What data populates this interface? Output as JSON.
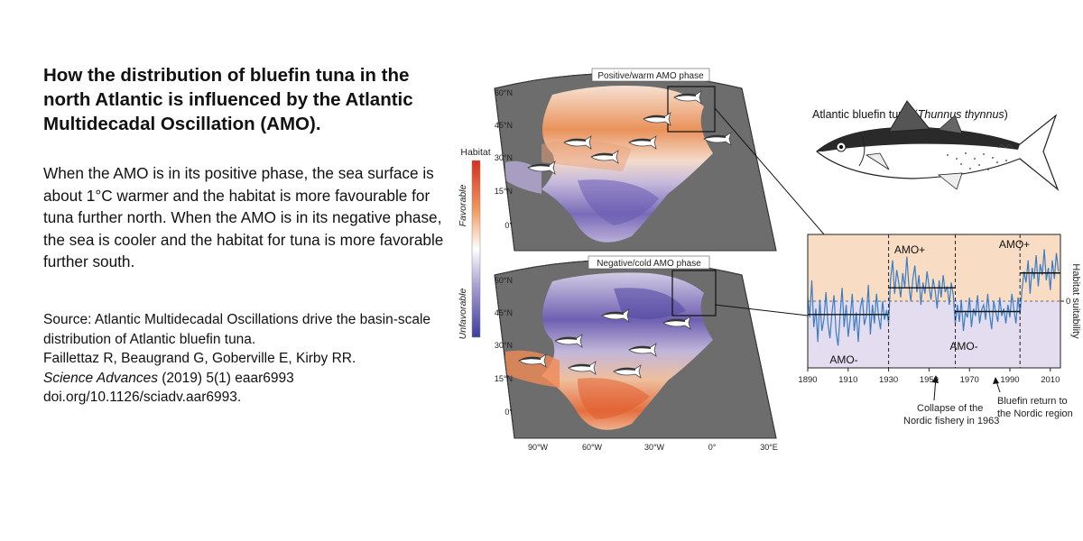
{
  "text": {
    "title": "How the distribution of bluefin tuna in the north Atlantic is influenced by the Atlantic Multidecadal Oscillation (AMO).",
    "body": "When the AMO is in its positive phase, the sea surface is about 1°C warmer and the habitat is more favourable for tuna further north. When the AMO is in its negative phase, the sea is cooler and the habitat for tuna is more favorable further south.",
    "source_line1": "Source: Atlantic Multidecadal Oscillations drive the basin-scale distribution of Atlantic bluefin tuna.",
    "source_line2": "Faillettaz R, Beaugrand G, Goberville E, Kirby RR.",
    "source_journal": "Science Advances",
    "source_ref": " (2019) 5(1) eaar6993",
    "source_doi": "doi.org/10.1126/sciadv.aar6993."
  },
  "maps": {
    "positive_label": "Positive/warm AMO phase",
    "negative_label": "Negative/cold AMO phase",
    "lat_labels": [
      "60°N",
      "45°N",
      "30°N",
      "15°N",
      "0°"
    ],
    "lon_labels": [
      "90°W",
      "60°W",
      "30°W",
      "0°",
      "30°E"
    ]
  },
  "legend": {
    "title": "Habitat",
    "favorable": "Favorable",
    "unfavorable": "Unfavorable",
    "colors": {
      "favorable": "#d62f1f",
      "neutral": "#ffffff",
      "unfavorable": "#3b3d9e"
    }
  },
  "fish": {
    "caption_prefix": "Atlantic bluefin tuna (",
    "caption_species": "Thunnus thynnus",
    "caption_suffix": ")"
  },
  "chart_data": {
    "type": "line",
    "ylabel": "Habitat suitability",
    "x_ticks": [
      "1890",
      "1910",
      "1930",
      "1950",
      "1970",
      "1990",
      "2010"
    ],
    "y_ticks": [
      "0"
    ],
    "xlim": [
      1890,
      2015
    ],
    "phase_boundaries": [
      1930,
      1963,
      1995
    ],
    "phases": [
      {
        "label": "AMO-",
        "start": 1890,
        "end": 1930,
        "sign": "negative"
      },
      {
        "label": "AMO+",
        "start": 1930,
        "end": 1963,
        "sign": "positive"
      },
      {
        "label": "AMO-",
        "start": 1963,
        "end": 1995,
        "sign": "negative"
      },
      {
        "label": "AMO+",
        "start": 1995,
        "end": 2015,
        "sign": "positive"
      }
    ],
    "phase_means": [
      {
        "start": 1890,
        "end": 1930,
        "value": -0.18
      },
      {
        "start": 1930,
        "end": 1963,
        "value": 0.18
      },
      {
        "start": 1963,
        "end": 1995,
        "value": -0.14
      },
      {
        "start": 1995,
        "end": 2015,
        "value": 0.38
      }
    ],
    "series": [
      {
        "x": [
          1890,
          1891,
          1892,
          1893,
          1894,
          1895,
          1896,
          1897,
          1898,
          1899,
          1900,
          1901,
          1902,
          1903,
          1904,
          1905,
          1906,
          1907,
          1908,
          1909,
          1910,
          1911,
          1912,
          1913,
          1914,
          1915,
          1916,
          1917,
          1918,
          1919,
          1920,
          1921,
          1922,
          1923,
          1924,
          1925,
          1926,
          1927,
          1928,
          1929,
          1930,
          1931,
          1932,
          1933,
          1934,
          1935,
          1936,
          1937,
          1938,
          1939,
          1940,
          1941,
          1942,
          1943,
          1944,
          1945,
          1946,
          1947,
          1948,
          1949,
          1950,
          1951,
          1952,
          1953,
          1954,
          1955,
          1956,
          1957,
          1958,
          1959,
          1960,
          1961,
          1962,
          1963,
          1964,
          1965,
          1966,
          1967,
          1968,
          1969,
          1970,
          1971,
          1972,
          1973,
          1974,
          1975,
          1976,
          1977,
          1978,
          1979,
          1980,
          1981,
          1982,
          1983,
          1984,
          1985,
          1986,
          1987,
          1988,
          1989,
          1990,
          1991,
          1992,
          1993,
          1994,
          1995,
          1996,
          1997,
          1998,
          1999,
          2000,
          2001,
          2002,
          2003,
          2004,
          2005,
          2006,
          2007,
          2008,
          2009,
          2010,
          2011,
          2012,
          2013,
          2014
        ],
        "values": [
          0.05,
          -0.22,
          0.28,
          -0.35,
          -0.1,
          -0.55,
          0.02,
          -0.4,
          -0.25,
          0.12,
          -0.3,
          -0.5,
          -0.15,
          0.08,
          -0.42,
          -0.6,
          -0.2,
          0.18,
          -0.35,
          -0.05,
          -0.48,
          -0.25,
          0.1,
          -0.4,
          -0.15,
          -0.55,
          -0.1,
          0.05,
          -0.32,
          -0.2,
          0.22,
          -0.45,
          -0.05,
          -0.3,
          0.1,
          -0.2,
          -0.38,
          0.0,
          -0.25,
          -0.12,
          -0.3,
          0.3,
          0.55,
          0.1,
          0.42,
          0.25,
          0.05,
          0.38,
          0.18,
          0.6,
          0.22,
          0.0,
          0.3,
          0.48,
          0.12,
          0.35,
          -0.05,
          0.25,
          0.1,
          0.4,
          0.2,
          0.02,
          0.3,
          0.15,
          -0.1,
          0.28,
          0.05,
          0.35,
          0.12,
          0.2,
          -0.05,
          0.25,
          0.08,
          -0.3,
          -0.05,
          -0.28,
          0.02,
          -0.4,
          -0.15,
          -0.22,
          0.05,
          -0.35,
          -0.1,
          -0.2,
          0.08,
          -0.3,
          -0.12,
          -0.05,
          -0.25,
          0.1,
          -0.18,
          -0.38,
          0.0,
          -0.15,
          -0.28,
          0.05,
          -0.2,
          -0.1,
          -0.3,
          -0.05,
          -0.22,
          0.1,
          -0.12,
          -0.3,
          0.05,
          -0.18,
          0.15,
          0.4,
          0.25,
          0.55,
          0.1,
          0.45,
          0.3,
          0.62,
          0.2,
          0.5,
          0.35,
          0.7,
          0.28,
          0.45,
          0.15,
          0.55,
          0.3,
          0.65,
          0.4
        ]
      }
    ]
  },
  "annotations": {
    "collapse_line1": "Collapse of the",
    "collapse_line2": "Nordic fishery in 1963",
    "return_line1": "Bluefin return to",
    "return_line2": "the Nordic region"
  }
}
